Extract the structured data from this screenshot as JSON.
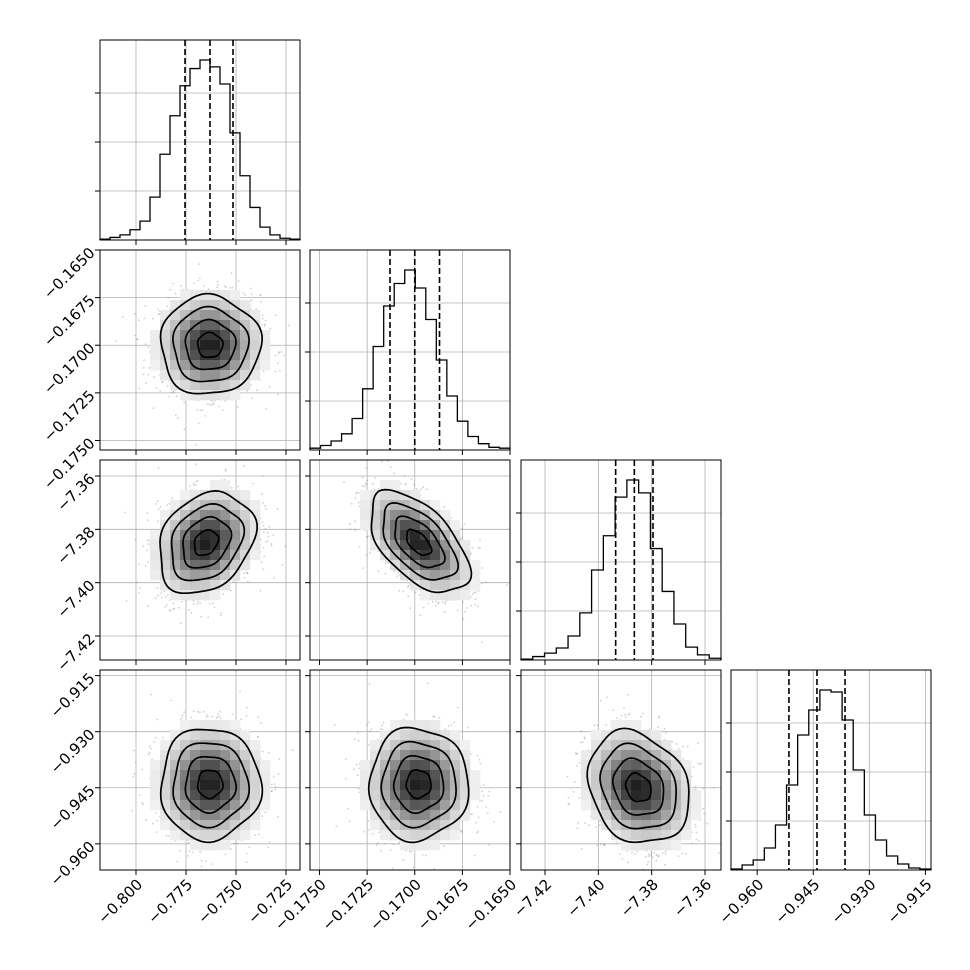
{
  "chart_data": {
    "type": "scatter",
    "subtype": "corner-plot",
    "parameters": [
      {
        "index": 0,
        "range": [
          -0.818,
          -0.718
        ],
        "ticks": [
          -0.8,
          -0.775,
          -0.75,
          -0.725
        ],
        "tick_labels": [
          "−0.800",
          "−0.775",
          "−0.750",
          "−0.725"
        ]
      },
      {
        "index": 1,
        "range": [
          -0.1755,
          -0.165
        ],
        "ticks": [
          -0.175,
          -0.1725,
          -0.17,
          -0.1675,
          -0.165
        ],
        "tick_labels": [
          "−0.1750",
          "−0.1725",
          "−0.1700",
          "−0.1675",
          "−0.1650"
        ]
      },
      {
        "index": 2,
        "range": [
          -7.429,
          -7.354
        ],
        "ticks": [
          -7.42,
          -7.4,
          -7.38,
          -7.36
        ],
        "tick_labels": [
          "−7.42",
          "−7.40",
          "−7.38",
          "−7.36"
        ]
      },
      {
        "index": 3,
        "range": [
          -0.967,
          -0.9135
        ],
        "ticks": [
          -0.96,
          -0.945,
          -0.93,
          -0.915
        ],
        "tick_labels": [
          "−0.960",
          "−0.945",
          "−0.930",
          "−0.915"
        ]
      }
    ],
    "histograms": [
      {
        "param": 0,
        "bin_range": [
          -0.818,
          -0.718
        ],
        "counts": [
          1,
          3,
          6,
          12,
          22,
          50,
          100,
          145,
          180,
          200,
          210,
          202,
          182,
          125,
          75,
          38,
          15,
          6,
          2,
          1
        ],
        "quantiles": [
          -0.7755,
          -0.763,
          -0.7515
        ]
      },
      {
        "param": 1,
        "bin_range": [
          -0.1755,
          -0.165
        ],
        "counts": [
          2,
          5,
          10,
          18,
          35,
          68,
          115,
          160,
          185,
          200,
          180,
          145,
          100,
          60,
          32,
          15,
          7,
          3,
          2
        ],
        "quantiles": [
          -0.1713,
          -0.17,
          -0.1687
        ]
      },
      {
        "param": 2,
        "bin_range": [
          -7.429,
          -7.354
        ],
        "counts": [
          1,
          4,
          8,
          14,
          28,
          55,
          105,
          145,
          190,
          210,
          195,
          130,
          80,
          42,
          15,
          6,
          2
        ],
        "quantiles": [
          -7.3935,
          -7.3865,
          -7.3795
        ]
      },
      {
        "param": 3,
        "bin_range": [
          -0.967,
          -0.9135
        ],
        "counts": [
          1,
          5,
          10,
          22,
          45,
          85,
          135,
          160,
          180,
          178,
          150,
          100,
          55,
          30,
          14,
          6,
          2,
          1
        ],
        "quantiles": [
          -0.9515,
          -0.944,
          -0.9365
        ]
      }
    ],
    "joint_panels": [
      {
        "x": 0,
        "y": 1,
        "center": [
          -0.763,
          -0.17
        ],
        "sigma": [
          0.0125,
          0.0013
        ],
        "correlation": 0.0
      },
      {
        "x": 0,
        "y": 2,
        "center": [
          -0.765,
          -7.385
        ],
        "sigma": [
          0.012,
          0.0095
        ],
        "correlation": 0.25
      },
      {
        "x": 1,
        "y": 2,
        "center": [
          -0.1698,
          -7.385
        ],
        "sigma": [
          0.0013,
          0.0095
        ],
        "correlation": -0.55
      },
      {
        "x": 0,
        "y": 3,
        "center": [
          -0.763,
          -0.944
        ],
        "sigma": [
          0.0125,
          0.0075
        ],
        "correlation": 0.0
      },
      {
        "x": 1,
        "y": 3,
        "center": [
          -0.1698,
          -0.944
        ],
        "sigma": [
          0.0013,
          0.0075
        ],
        "correlation": 0.0
      },
      {
        "x": 2,
        "y": 3,
        "center": [
          -7.385,
          -0.945
        ],
        "sigma": [
          0.0095,
          0.0075
        ],
        "correlation": -0.2
      }
    ],
    "grid": true
  }
}
